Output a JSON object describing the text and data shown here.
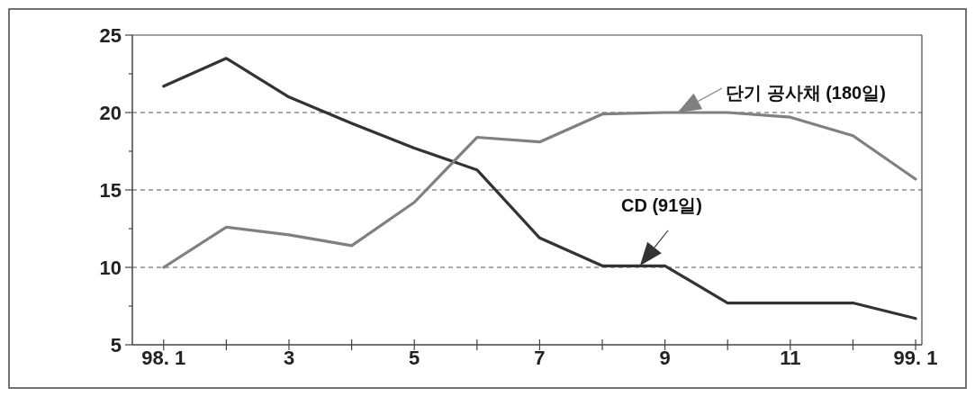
{
  "chart_data": {
    "type": "line",
    "categories": [
      "98. 1",
      null,
      "3",
      null,
      "5",
      null,
      "7",
      null,
      "9",
      null,
      "11",
      null,
      "99. 1"
    ],
    "series": [
      {
        "name": "CD (91일)",
        "color": "#333333",
        "values": [
          21.7,
          23.5,
          21.0,
          19.3,
          17.7,
          16.3,
          11.9,
          10.1,
          10.1,
          7.7,
          7.7,
          7.7,
          6.7
        ]
      },
      {
        "name": "단기 공사채 (180일)",
        "color": "#808080",
        "values": [
          10.0,
          12.6,
          12.1,
          11.4,
          14.2,
          18.4,
          18.1,
          19.9,
          20.0,
          20.0,
          19.7,
          18.5,
          15.7
        ]
      }
    ],
    "ylim": [
      5,
      25
    ],
    "yticks": [
      5,
      {
        "value": 7.5,
        "label": null
      },
      10,
      {
        "value": 12.5,
        "label": null
      },
      15,
      {
        "value": 17.5,
        "label": null
      },
      20,
      {
        "value": 22.5,
        "label": null
      },
      25
    ],
    "grid": "y"
  }
}
